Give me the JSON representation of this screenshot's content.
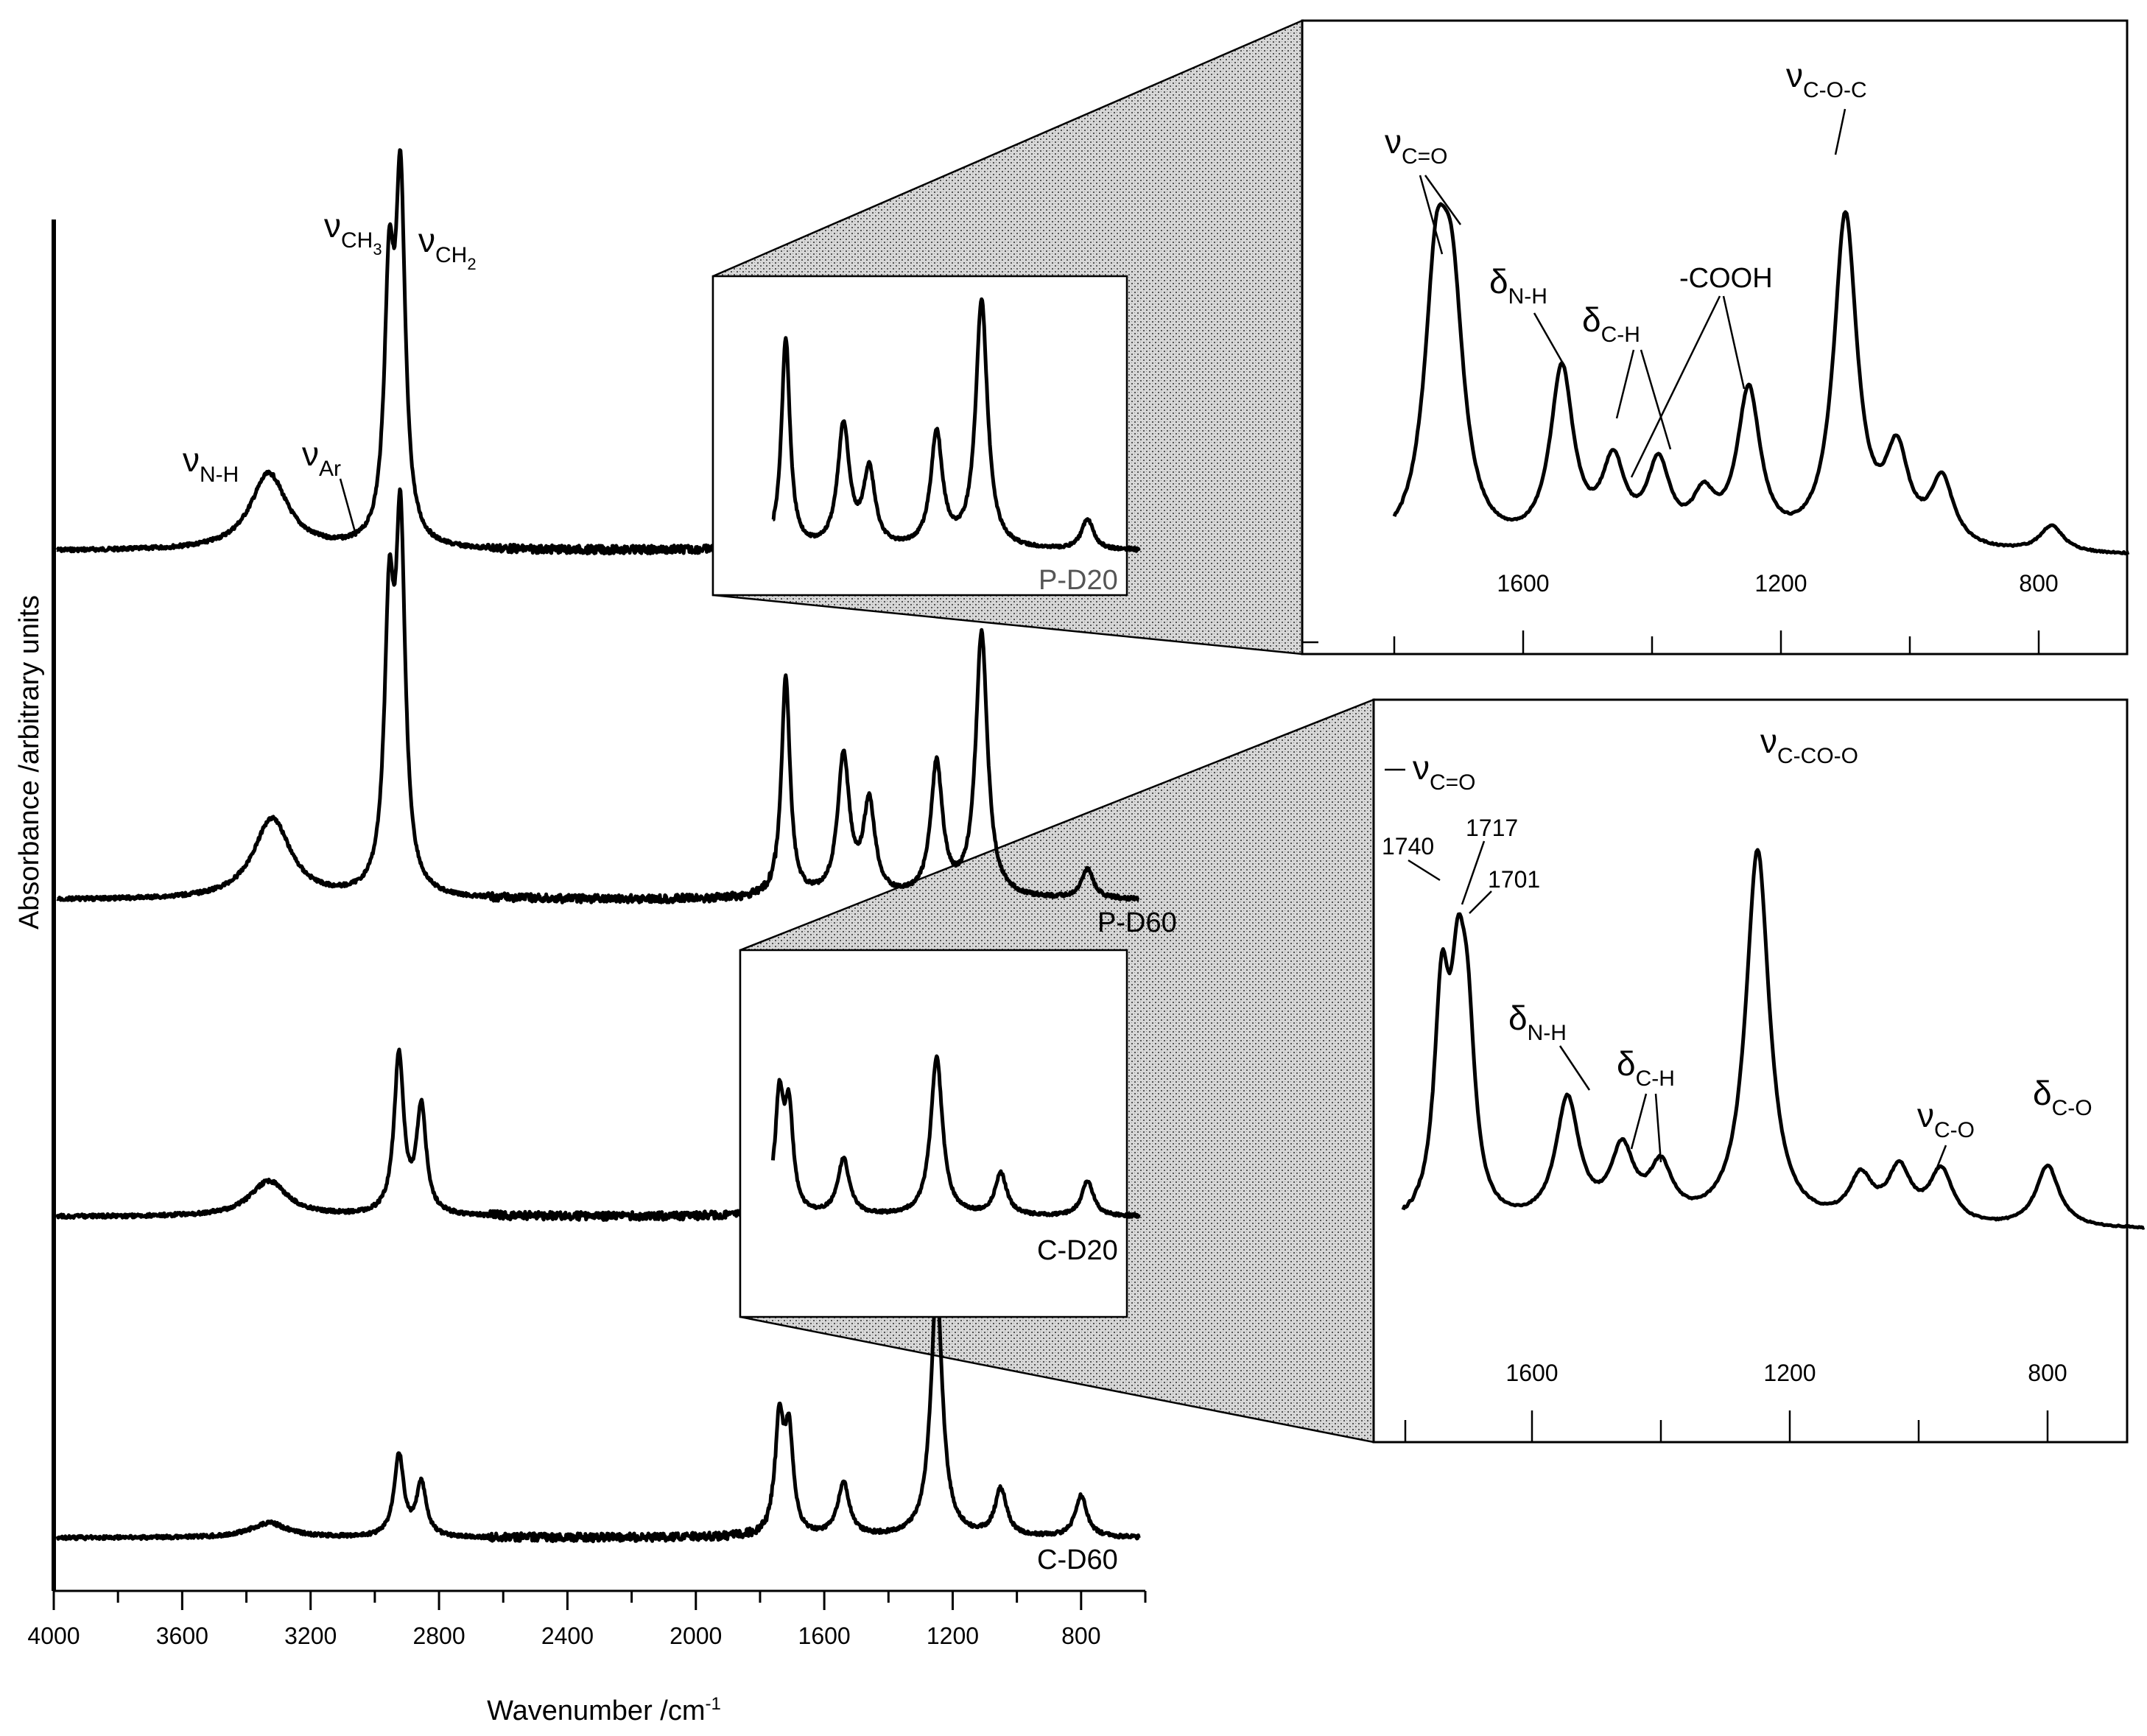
{
  "chart_data": {
    "type": "line",
    "title": "",
    "xlabel": "Wavenumber /cm",
    "xlabel_superscript": "-1",
    "ylabel": "Absorbance /arbitrary units",
    "xlim": [
      4000,
      600
    ],
    "x_ticks": [
      "4000",
      "3600",
      "3200",
      "2800",
      "2400",
      "2000",
      "1600",
      "1200",
      "800"
    ],
    "series": [
      {
        "name": "P-D20",
        "peaks": [
          [
            3330,
            0.2
          ],
          [
            2955,
            0.65
          ],
          [
            2920,
            0.9
          ],
          [
            1720,
            0.55
          ],
          [
            1540,
            0.32
          ],
          [
            1460,
            0.2
          ],
          [
            1250,
            0.3
          ],
          [
            1110,
            0.65
          ],
          [
            780,
            0.08
          ]
        ]
      },
      {
        "name": "P-D60",
        "peaks": [
          [
            3320,
            0.22
          ],
          [
            2955,
            0.72
          ],
          [
            2920,
            0.95
          ],
          [
            1720,
            0.6
          ],
          [
            1540,
            0.38
          ],
          [
            1460,
            0.25
          ],
          [
            1250,
            0.36
          ],
          [
            1110,
            0.72
          ],
          [
            780,
            0.08
          ]
        ]
      },
      {
        "name": "C-D20",
        "peaks": [
          [
            3330,
            0.1
          ],
          [
            2925,
            0.45
          ],
          [
            2855,
            0.3
          ],
          [
            1740,
            0.32
          ],
          [
            1710,
            0.28
          ],
          [
            1540,
            0.16
          ],
          [
            1250,
            0.45
          ],
          [
            1050,
            0.12
          ],
          [
            780,
            0.1
          ]
        ]
      },
      {
        "name": "C-D60",
        "peaks": [
          [
            3330,
            0.05
          ],
          [
            2925,
            0.28
          ],
          [
            2855,
            0.18
          ],
          [
            1740,
            0.38
          ],
          [
            1710,
            0.33
          ],
          [
            1540,
            0.18
          ],
          [
            1250,
            0.85
          ],
          [
            1050,
            0.16
          ],
          [
            800,
            0.14
          ]
        ]
      }
    ],
    "peak_labels": [
      {
        "symbol": "ν",
        "sub": "N-H"
      },
      {
        "symbol": "ν",
        "sub": "Ar"
      },
      {
        "symbol": "ν",
        "sub": "CH",
        "sub2": "3"
      },
      {
        "symbol": "ν",
        "sub": "CH",
        "sub2": "2"
      }
    ],
    "insets": [
      {
        "name": "P-D20 expansion",
        "x_ticks": [
          "1600",
          "1200",
          "800"
        ],
        "labels": [
          {
            "symbol": "ν",
            "sub": "C=O"
          },
          {
            "symbol": "δ",
            "sub": "N-H"
          },
          {
            "symbol": "δ",
            "sub": "C-H"
          },
          {
            "text": "-COOH"
          },
          {
            "symbol": "ν",
            "sub": "C-O-C"
          }
        ]
      },
      {
        "name": "C-D20 expansion",
        "x_ticks": [
          "1600",
          "1200",
          "800"
        ],
        "labels": [
          {
            "symbol": "ν",
            "sub": "C=O"
          },
          {
            "symbol": "ν",
            "sub": "C-CO-O"
          },
          {
            "symbol": "δ",
            "sub": "N-H"
          },
          {
            "symbol": "δ",
            "sub": "C-H"
          },
          {
            "symbol": "ν",
            "sub": "C-O"
          },
          {
            "symbol": "δ",
            "sub": "C-O"
          }
        ],
        "numbers": [
          "1740",
          "1717",
          "1701"
        ]
      }
    ]
  }
}
